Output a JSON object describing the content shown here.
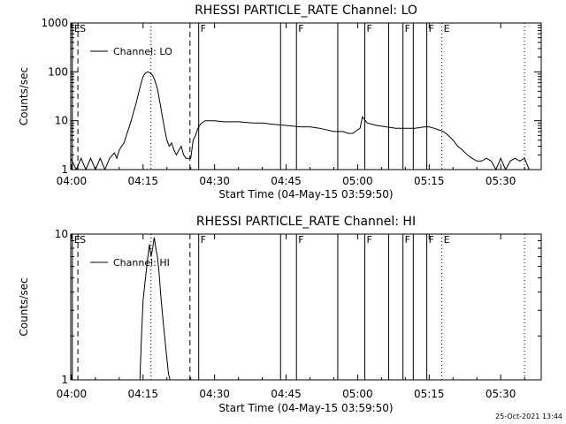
{
  "footer": {
    "timestamp": "25-Oct-2021 13:44"
  },
  "marker_legend": {
    "E": "E",
    "S": "S",
    "F": "F"
  },
  "chart_data": [
    {
      "type": "line",
      "title": "RHESSI PARTICLE_RATE Channel: LO",
      "xlabel": "Start Time (04-May-15 03:59:50)",
      "ylabel": "Counts/sec",
      "yscale": "log",
      "ylim": [
        1,
        1000
      ],
      "yticks": [
        1,
        10,
        100,
        1000
      ],
      "ytick_labels": [
        "1",
        "10",
        "100",
        "1000"
      ],
      "xlim": [
        "03:59:50",
        "05:38:30"
      ],
      "xticks": [
        "04:00",
        "04:15",
        "04:30",
        "04:45",
        "05:00",
        "05:15",
        "05:30"
      ],
      "legend": {
        "label": "Channel: LO",
        "placement": "top-left"
      },
      "series": [
        {
          "name": "Channel: LO",
          "x": [
            "03:59:50",
            "04:01:00",
            "04:02:00",
            "04:03:00",
            "04:04:00",
            "04:05:00",
            "04:06:00",
            "04:07:00",
            "04:08:00",
            "04:09:00",
            "04:09:30",
            "04:10:00",
            "04:10:30",
            "04:11:00",
            "04:11:30",
            "04:12:00",
            "04:12:30",
            "04:13:00",
            "04:13:30",
            "04:14:00",
            "04:14:30",
            "04:15:00",
            "04:15:30",
            "04:16:00",
            "04:16:30",
            "04:17:00",
            "04:17:30",
            "04:18:00",
            "04:18:30",
            "04:19:00",
            "04:19:30",
            "04:20:00",
            "04:20:30",
            "04:21:00",
            "04:21:30",
            "04:22:00",
            "04:22:30",
            "04:23:00",
            "04:23:30",
            "04:24:00",
            "04:24:30",
            "04:25:00",
            "04:25:30",
            "04:26:00",
            "04:26:30",
            "04:27:00",
            "04:28:00",
            "04:30:00",
            "04:32:00",
            "04:35:00",
            "04:38:00",
            "04:40:00",
            "04:42:00",
            "04:45:00",
            "04:48:00",
            "04:50:00",
            "04:52:00",
            "04:55:00",
            "04:57:00",
            "04:58:00",
            "04:59:00",
            "04:59:30",
            "05:00:00",
            "05:00:30",
            "05:01:00",
            "05:02:00",
            "05:04:00",
            "05:06:00",
            "05:08:00",
            "05:10:00",
            "05:12:00",
            "05:14:00",
            "05:15:00",
            "05:16:00",
            "05:17:00",
            "05:18:00",
            "05:19:00",
            "05:20:00",
            "05:21:00",
            "05:22:00",
            "05:23:00",
            "05:24:00",
            "05:25:00",
            "05:26:00",
            "05:27:00",
            "05:28:00",
            "05:29:00",
            "05:30:00",
            "05:31:00",
            "05:32:00",
            "05:33:00",
            "05:34:00",
            "05:35:00",
            "05:36:00"
          ],
          "values": [
            1.7,
            1,
            1.7,
            1,
            1.7,
            1,
            1.7,
            1,
            1.7,
            2.2,
            1.7,
            2.5,
            3,
            3.5,
            5,
            7,
            10,
            15,
            22,
            35,
            55,
            80,
            95,
            100,
            95,
            85,
            65,
            45,
            25,
            13,
            7,
            4,
            3,
            3.5,
            2.5,
            2,
            2.5,
            3,
            2,
            1.7,
            1.7,
            1.7,
            4,
            5,
            7,
            8.5,
            10,
            10,
            9.5,
            9.5,
            9,
            9,
            8.5,
            8,
            7.5,
            7.5,
            7,
            6,
            6,
            5.5,
            5.5,
            6,
            6.5,
            7,
            12,
            9,
            8,
            7.5,
            7,
            7,
            7,
            7.5,
            7.5,
            7,
            6.5,
            6,
            5,
            4,
            3,
            2.5,
            2,
            1.7,
            1.5,
            1.5,
            1.7,
            1.5,
            1,
            1.7,
            1,
            1.5,
            1.7,
            1.5,
            1.7,
            1
          ]
        }
      ],
      "markers": [
        {
          "label": "E",
          "time": "04:00:10",
          "style": "solid"
        },
        {
          "label": "S",
          "time": "04:01:20",
          "style": "dashed"
        },
        {
          "label": "",
          "time": "04:16:40",
          "style": "dotted"
        },
        {
          "label": "",
          "time": "04:24:50",
          "style": "dashed"
        },
        {
          "label": "F",
          "time": "04:26:40",
          "style": "solid"
        },
        {
          "label": "",
          "time": "04:43:50",
          "style": "solid"
        },
        {
          "label": "F",
          "time": "04:47:10",
          "style": "solid"
        },
        {
          "label": "",
          "time": "04:55:50",
          "style": "solid"
        },
        {
          "label": "F",
          "time": "05:01:30",
          "style": "solid"
        },
        {
          "label": "",
          "time": "05:06:30",
          "style": "solid"
        },
        {
          "label": "F",
          "time": "05:09:30",
          "style": "solid"
        },
        {
          "label": "",
          "time": "05:11:40",
          "style": "solid"
        },
        {
          "label": "F",
          "time": "05:14:30",
          "style": "solid"
        },
        {
          "label": "E",
          "time": "05:17:40",
          "style": "dotted"
        },
        {
          "label": "",
          "time": "05:35:00",
          "style": "dotted"
        }
      ]
    },
    {
      "type": "line",
      "title": "RHESSI PARTICLE_RATE Channel: HI",
      "xlabel": "Start Time (04-May-15 03:59:50)",
      "ylabel": "Counts/sec",
      "yscale": "log",
      "ylim": [
        1,
        10
      ],
      "yticks": [
        1,
        10
      ],
      "ytick_labels": [
        "1",
        "10"
      ],
      "xlim": [
        "03:59:50",
        "05:38:30"
      ],
      "xticks": [
        "04:00",
        "04:15",
        "04:30",
        "04:45",
        "05:00",
        "05:15",
        "05:30"
      ],
      "legend": {
        "label": "Channel: HI",
        "placement": "top-left"
      },
      "series": [
        {
          "name": "Channel: HI",
          "x": [
            "04:14:20",
            "04:14:40",
            "04:15:00",
            "04:15:30",
            "04:16:00",
            "04:16:20",
            "04:16:40",
            "04:17:00",
            "04:17:20",
            "04:17:40",
            "04:18:00",
            "04:18:20",
            "04:18:40",
            "04:19:00",
            "04:19:20",
            "04:19:40",
            "04:20:00",
            "04:20:20",
            "04:20:40"
          ],
          "values": [
            1,
            2,
            3.5,
            5,
            7,
            8.5,
            7,
            8,
            9.5,
            8,
            7,
            5.5,
            4,
            3,
            2.3,
            1.8,
            1.4,
            1.1,
            1
          ]
        }
      ],
      "markers": [
        {
          "label": "E",
          "time": "04:00:10",
          "style": "solid"
        },
        {
          "label": "S",
          "time": "04:01:20",
          "style": "dashed"
        },
        {
          "label": "",
          "time": "04:16:40",
          "style": "dotted"
        },
        {
          "label": "",
          "time": "04:24:50",
          "style": "dashed"
        },
        {
          "label": "F",
          "time": "04:26:40",
          "style": "solid"
        },
        {
          "label": "",
          "time": "04:43:50",
          "style": "solid"
        },
        {
          "label": "F",
          "time": "04:47:10",
          "style": "solid"
        },
        {
          "label": "",
          "time": "04:55:50",
          "style": "solid"
        },
        {
          "label": "F",
          "time": "05:01:30",
          "style": "solid"
        },
        {
          "label": "",
          "time": "05:06:30",
          "style": "solid"
        },
        {
          "label": "F",
          "time": "05:09:30",
          "style": "solid"
        },
        {
          "label": "",
          "time": "05:11:40",
          "style": "solid"
        },
        {
          "label": "F",
          "time": "05:14:30",
          "style": "solid"
        },
        {
          "label": "E",
          "time": "05:17:40",
          "style": "dotted"
        },
        {
          "label": "",
          "time": "05:35:00",
          "style": "dotted"
        }
      ]
    }
  ]
}
